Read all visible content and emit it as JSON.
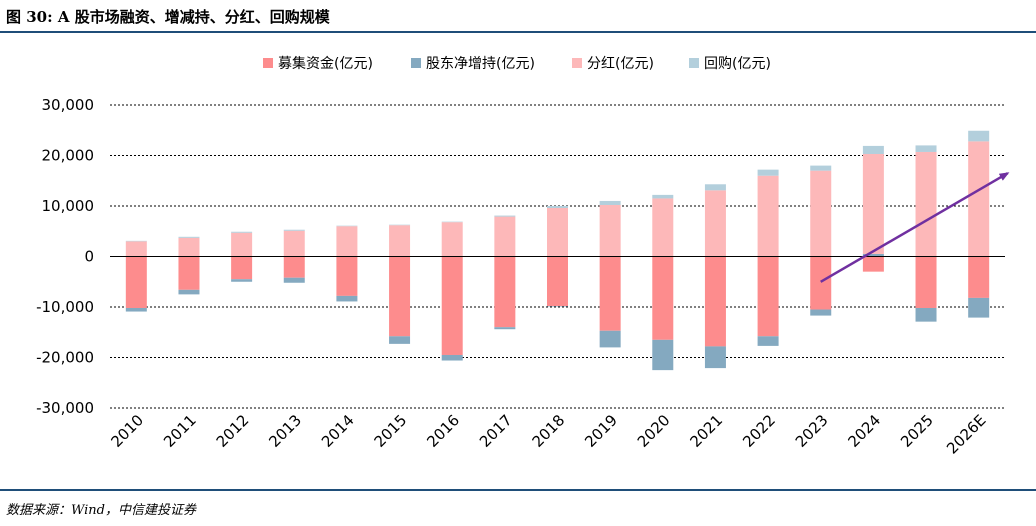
{
  "title": "图 30: A 股市场融资、增减持、分红、回购规模",
  "source": "数据来源：Wind，中信建投证券",
  "colors": {
    "rule": "#1f4e79",
    "financing": "#fd8c8d",
    "net_holding": "#84a9c0",
    "dividend": "#fdb8b9",
    "buyback": "#b3cfdc",
    "arrow": "#7030a0"
  },
  "chart_data": {
    "type": "bar",
    "stacked": true,
    "categories": [
      "2010",
      "2011",
      "2012",
      "2013",
      "2014",
      "2015",
      "2016",
      "2017",
      "2018",
      "2019",
      "2020",
      "2021",
      "2022",
      "2023",
      "2024",
      "2025",
      "2026E"
    ],
    "series": [
      {
        "name": "募集资金(亿元)",
        "key": "financing",
        "values": [
          -10200,
          -6600,
          -4500,
          -4200,
          -7800,
          -15800,
          -19500,
          -14000,
          -9800,
          -14700,
          -16500,
          -17800,
          -15800,
          -10500,
          -3000,
          -10200,
          -8200
        ]
      },
      {
        "name": "股东净增持(亿元)",
        "key": "net_holding",
        "values": [
          -700,
          -900,
          -500,
          -1000,
          -1100,
          -1500,
          -1100,
          -400,
          -100,
          -3300,
          -6000,
          -4300,
          -1900,
          -1200,
          500,
          -2700,
          -3900
        ]
      },
      {
        "name": "分红(亿元)",
        "key": "dividend",
        "values": [
          3000,
          3700,
          4700,
          5100,
          6000,
          6200,
          6800,
          7900,
          9600,
          10200,
          11500,
          13100,
          16000,
          17000,
          19800,
          20700,
          22800
        ]
      },
      {
        "name": "回购(亿元)",
        "key": "buyback",
        "values": [
          100,
          200,
          200,
          200,
          100,
          100,
          100,
          200,
          400,
          800,
          700,
          1200,
          1200,
          1000,
          1600,
          1300,
          2100
        ]
      }
    ],
    "ylim": [
      -30000,
      30000
    ],
    "yticks": [
      "30,000",
      "20,000",
      "10,000",
      "0",
      "-10,000",
      "-20,000",
      "-30,000"
    ],
    "grid": true,
    "legend_position": "top",
    "trend_arrow": {
      "from": {
        "x": "2023",
        "y": -5000
      },
      "to": {
        "x": "2026E",
        "y": 16500
      }
    }
  }
}
